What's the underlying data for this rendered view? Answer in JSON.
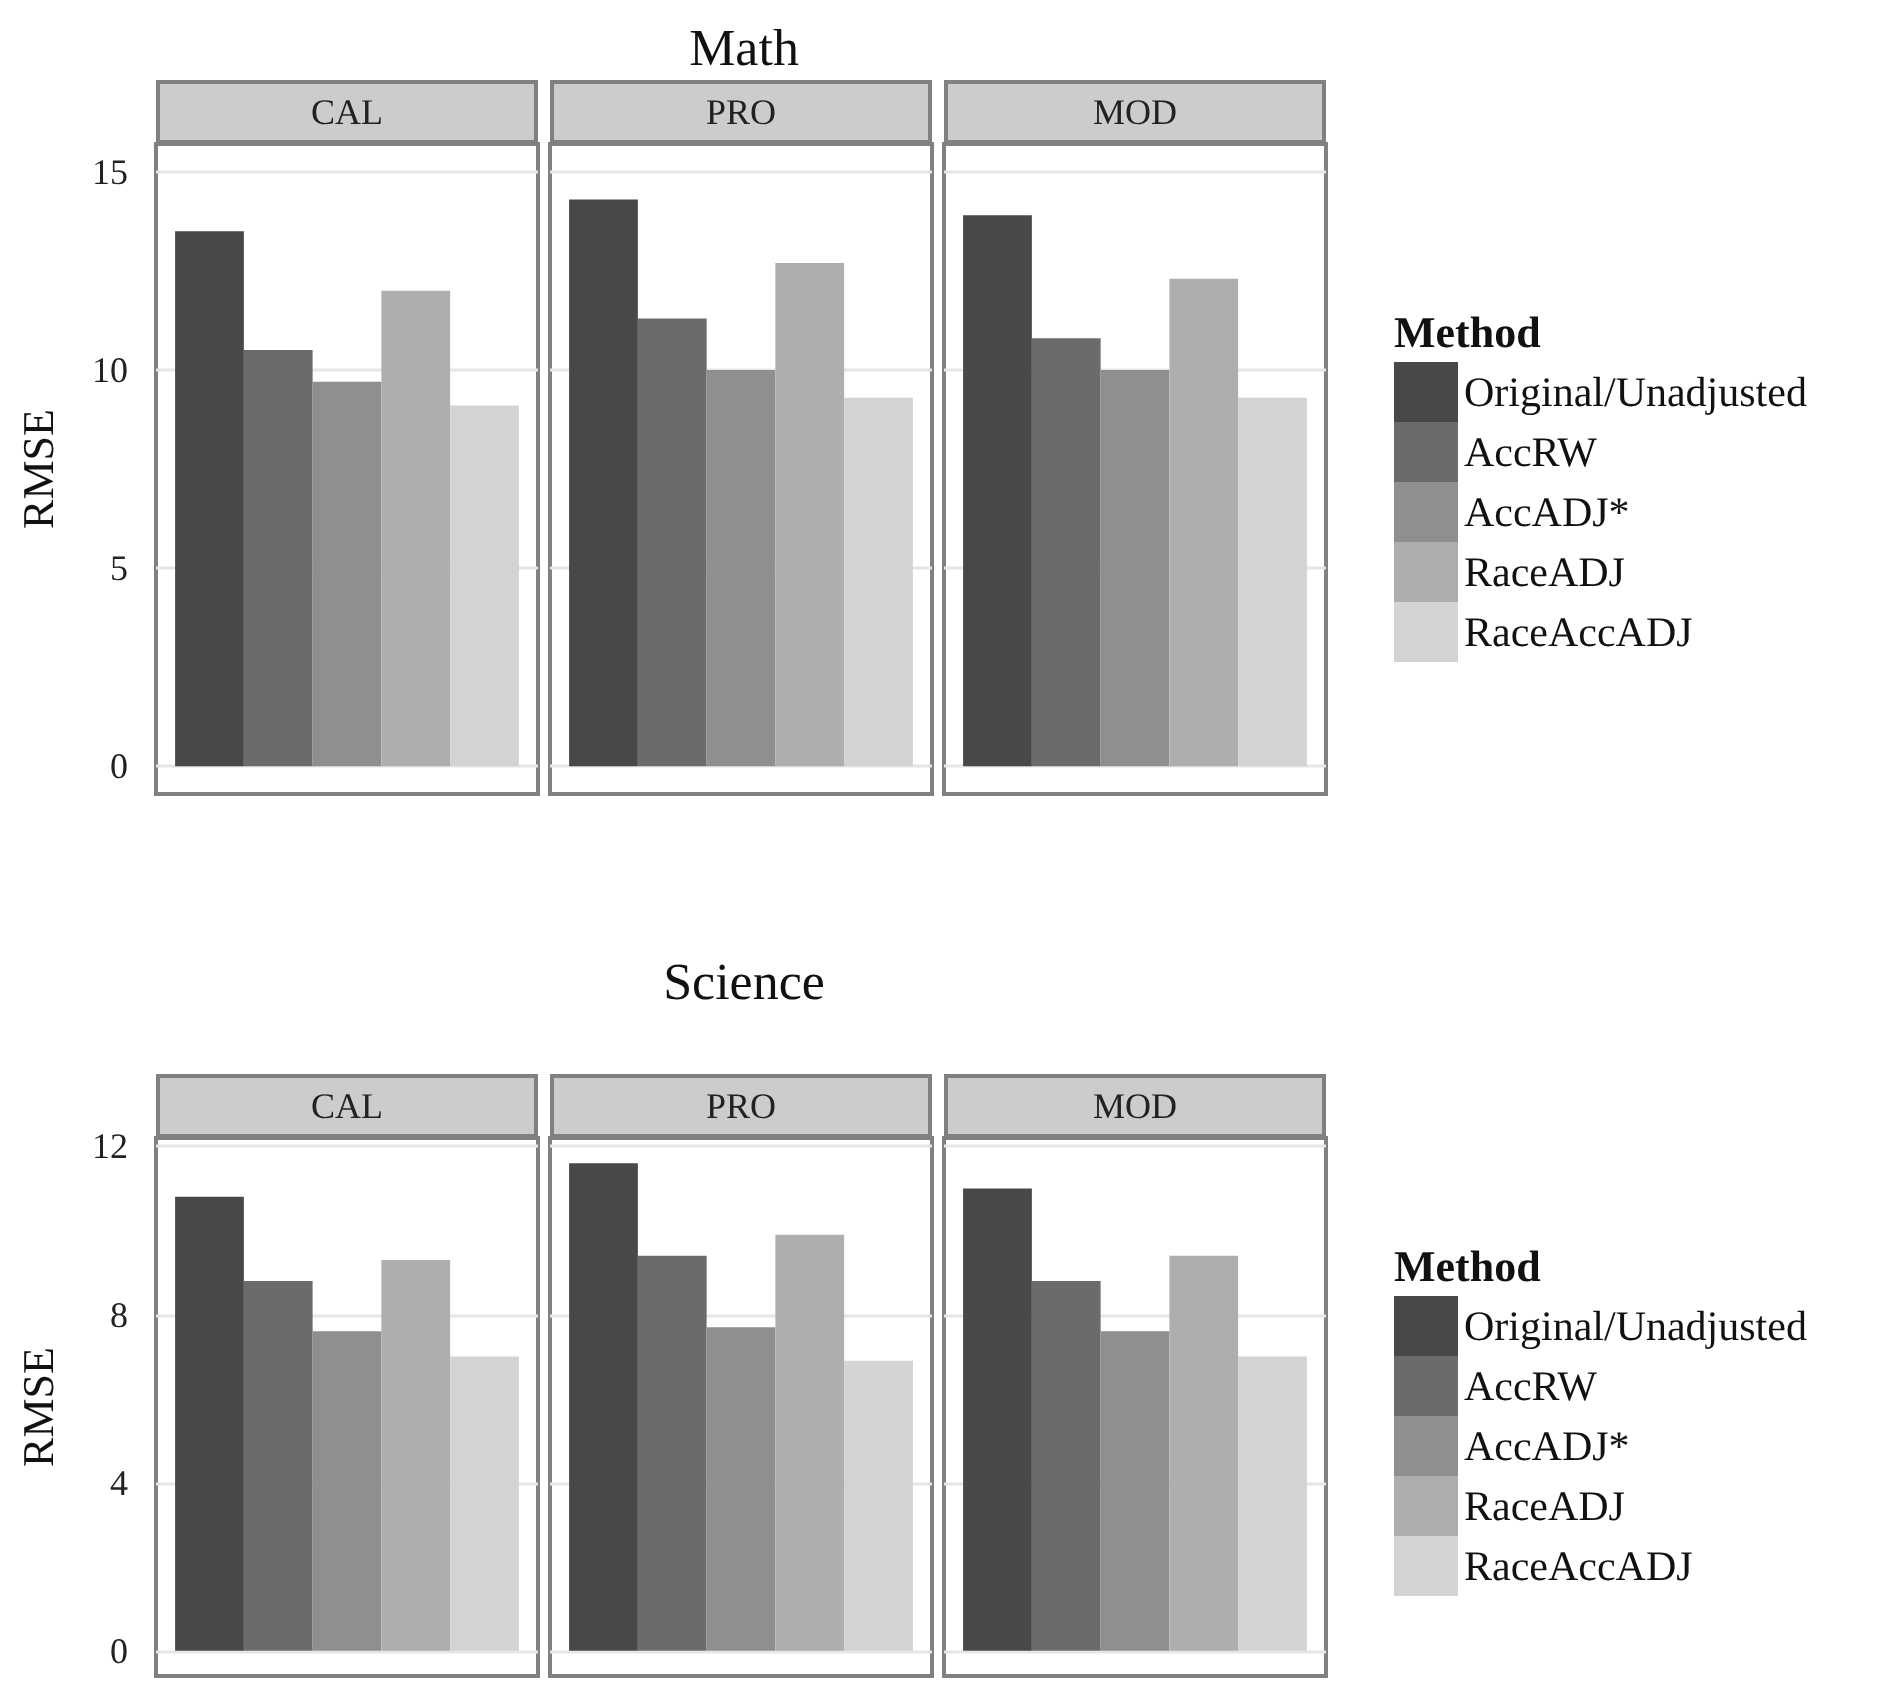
{
  "chart_data": [
    {
      "type": "bar",
      "title": "Math",
      "ylabel": "RMSE",
      "legend_title": "Method",
      "categories": [
        "CAL",
        "PRO",
        "MOD"
      ],
      "series": [
        {
          "name": "Original/Unadjusted",
          "color": "#484848",
          "values": [
            13.5,
            14.3,
            13.9
          ]
        },
        {
          "name": "AccRW",
          "color": "#6b6b6b",
          "values": [
            10.5,
            11.3,
            10.8
          ]
        },
        {
          "name": "AccADJ*",
          "color": "#8f8f8f",
          "values": [
            9.7,
            10.0,
            10.0
          ]
        },
        {
          "name": "RaceADJ",
          "color": "#aeaeae",
          "values": [
            12.0,
            12.7,
            12.3
          ]
        },
        {
          "name": "RaceAccADJ",
          "color": "#d3d3d3",
          "values": [
            9.1,
            9.3,
            9.3
          ]
        }
      ],
      "ylim": [
        -0.7,
        15.7
      ],
      "yticks": [
        0,
        5,
        10,
        15
      ],
      "grid": "y",
      "legend": "right"
    },
    {
      "type": "bar",
      "title": "Science",
      "ylabel": "RMSE",
      "legend_title": "Method",
      "categories": [
        "CAL",
        "PRO",
        "MOD"
      ],
      "series": [
        {
          "name": "Original/Unadjusted",
          "color": "#484848",
          "values": [
            10.8,
            11.6,
            11.0
          ]
        },
        {
          "name": "AccRW",
          "color": "#6b6b6b",
          "values": [
            8.8,
            9.4,
            8.8
          ]
        },
        {
          "name": "AccADJ*",
          "color": "#8f8f8f",
          "values": [
            7.6,
            7.7,
            7.6
          ]
        },
        {
          "name": "RaceADJ",
          "color": "#aeaeae",
          "values": [
            9.3,
            9.9,
            9.4
          ]
        },
        {
          "name": "RaceAccADJ",
          "color": "#d3d3d3",
          "values": [
            7.0,
            6.9,
            7.0
          ]
        }
      ],
      "ylim": [
        -0.6,
        12.2
      ],
      "yticks": [
        0,
        4,
        8,
        12
      ],
      "grid": "y",
      "legend": "right"
    }
  ]
}
